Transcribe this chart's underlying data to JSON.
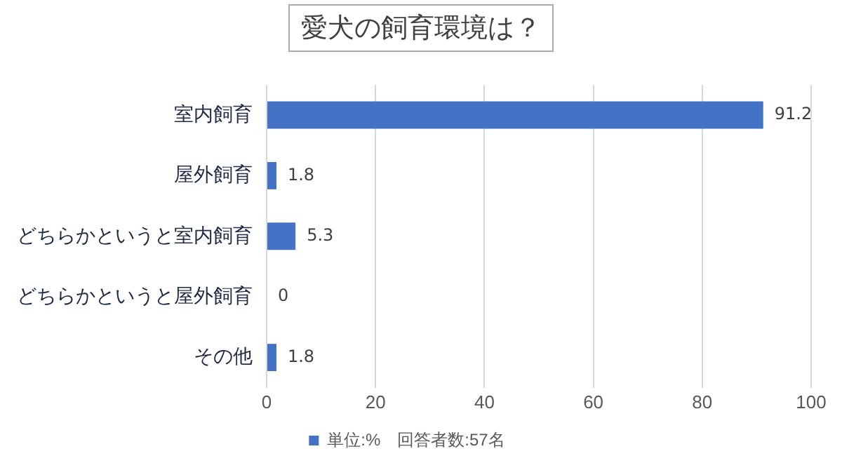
{
  "chart_data": {
    "type": "bar",
    "orientation": "horizontal",
    "title": "愛犬の飼育環境は？",
    "categories": [
      "室内飼育",
      "屋外飼育",
      "どちらかというと室内飼育",
      "どちらかというと屋外飼育",
      "その他"
    ],
    "series": [
      {
        "name": "単位:%　回答者数:57名",
        "color": "#4472c4",
        "values": [
          91.2,
          1.8,
          5.3,
          0,
          1.8
        ]
      }
    ],
    "xlim": [
      0,
      100
    ],
    "xticks": [
      0,
      20,
      40,
      60,
      80,
      100
    ],
    "grid": "x",
    "legend": "bottom",
    "data_labels": true
  }
}
